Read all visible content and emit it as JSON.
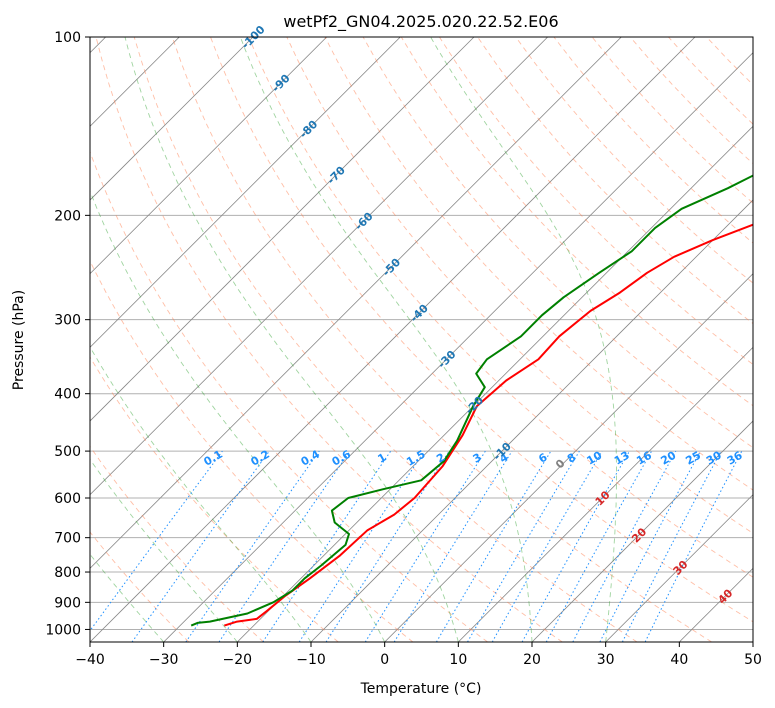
{
  "chart_data": {
    "type": "line",
    "subtype": "skew-t log-p diagram",
    "title": "wetPf2_GN04.2025.020.22.52.E06",
    "xlabel": "Temperature (°C)",
    "ylabel": "Pressure (hPa)",
    "xlim": [
      -40,
      50
    ],
    "ylim": [
      1050,
      100
    ],
    "y_scale": "log",
    "grid": true,
    "x_ticks": [
      -40,
      -30,
      -20,
      -10,
      0,
      10,
      20,
      30,
      40,
      50
    ],
    "y_ticks": [
      100,
      200,
      300,
      400,
      500,
      600,
      700,
      800,
      900,
      1000
    ],
    "series": [
      {
        "color": "#ff0000",
        "points": [
          [
            -24.0,
            985
          ],
          [
            -22.8,
            970
          ],
          [
            -20.5,
            960
          ],
          [
            -20.2,
            930
          ],
          [
            -19.8,
            880
          ],
          [
            -18.8,
            820
          ],
          [
            -17.8,
            750
          ],
          [
            -17.5,
            680
          ],
          [
            -16.0,
            640
          ],
          [
            -15.5,
            600
          ],
          [
            -16.0,
            530
          ],
          [
            -17.5,
            470
          ],
          [
            -19.5,
            420
          ],
          [
            -19.0,
            380
          ],
          [
            -17.5,
            350
          ],
          [
            -17.8,
            320
          ],
          [
            -17.0,
            290
          ],
          [
            -15.5,
            270
          ],
          [
            -14.5,
            250
          ],
          [
            -13.0,
            235
          ],
          [
            -10.0,
            220
          ],
          [
            -6.0,
            205
          ],
          [
            -5.5,
            190
          ],
          [
            -5.5,
            175
          ],
          [
            -5.8,
            165
          ],
          [
            -5.5,
            155
          ],
          [
            -5.0,
            145
          ],
          [
            -3.0,
            130
          ],
          [
            1.0,
            120
          ],
          [
            5.0,
            110
          ],
          [
            7.5,
            100
          ]
        ]
      },
      {
        "color": "#008000",
        "points": [
          [
            -28.5,
            985
          ],
          [
            -28.0,
            975
          ],
          [
            -26.5,
            970
          ],
          [
            -22.5,
            940
          ],
          [
            -20.5,
            900
          ],
          [
            -19.5,
            860
          ],
          [
            -19.5,
            820
          ],
          [
            -19.0,
            780
          ],
          [
            -18.5,
            720
          ],
          [
            -19.5,
            690
          ],
          [
            -23.0,
            660
          ],
          [
            -25.0,
            630
          ],
          [
            -24.5,
            600
          ],
          [
            -21.0,
            580
          ],
          [
            -17.0,
            560
          ],
          [
            -16.5,
            520
          ],
          [
            -17.5,
            480
          ],
          [
            -20.0,
            420
          ],
          [
            -21.0,
            390
          ],
          [
            -24.0,
            370
          ],
          [
            -24.5,
            350
          ],
          [
            -23.0,
            320
          ],
          [
            -23.0,
            295
          ],
          [
            -22.5,
            275
          ],
          [
            -21.0,
            250
          ],
          [
            -19.5,
            230
          ],
          [
            -19.5,
            210
          ],
          [
            -18.5,
            195
          ],
          [
            -15.0,
            180
          ],
          [
            -12.0,
            165
          ],
          [
            -9.5,
            150
          ],
          [
            -7.0,
            135
          ],
          [
            -3.5,
            120
          ],
          [
            2.0,
            100
          ]
        ]
      }
    ],
    "isotherms": {
      "color": "#888888",
      "values": [
        -120,
        -110,
        -100,
        -90,
        -80,
        -70,
        -60,
        -50,
        -40,
        -30,
        -20,
        -10,
        0,
        10,
        20,
        30,
        40,
        50
      ]
    },
    "dry_adiabats": {
      "color": "#ff7f50",
      "theta_c": [
        -30,
        -20,
        -10,
        0,
        10,
        20,
        30,
        40,
        50,
        60,
        70,
        80,
        90,
        100,
        110,
        120,
        130,
        140,
        150,
        160,
        170,
        180
      ]
    },
    "moist_adiabats": {
      "color": "#2ca02c",
      "start_c": [
        -30,
        -20,
        -10,
        0,
        10,
        20,
        30
      ]
    },
    "isotherm_labels": {
      "color": "#1f77b4",
      "values": [
        -100,
        -90,
        -80,
        -70,
        -60,
        -50,
        -40,
        -30,
        -20,
        -10
      ]
    },
    "zero_label": {
      "text": "0",
      "color": "#808080"
    },
    "warm_labels": {
      "color": "#d62728",
      "values": [
        10,
        20,
        30,
        40
      ]
    },
    "mixing_ratio": {
      "color": "#1e90ff",
      "labels": [
        "0.1",
        "0.2",
        "0.4",
        "0.6",
        "1",
        "1.5",
        "2",
        "3",
        "4",
        "6",
        "8",
        "10",
        "13",
        "16",
        "20",
        "25",
        "30",
        "36"
      ],
      "values": [
        0.1,
        0.2,
        0.4,
        0.6,
        1,
        1.5,
        2,
        3,
        4,
        6,
        8,
        10,
        13,
        16,
        20,
        25,
        30,
        36
      ]
    }
  }
}
